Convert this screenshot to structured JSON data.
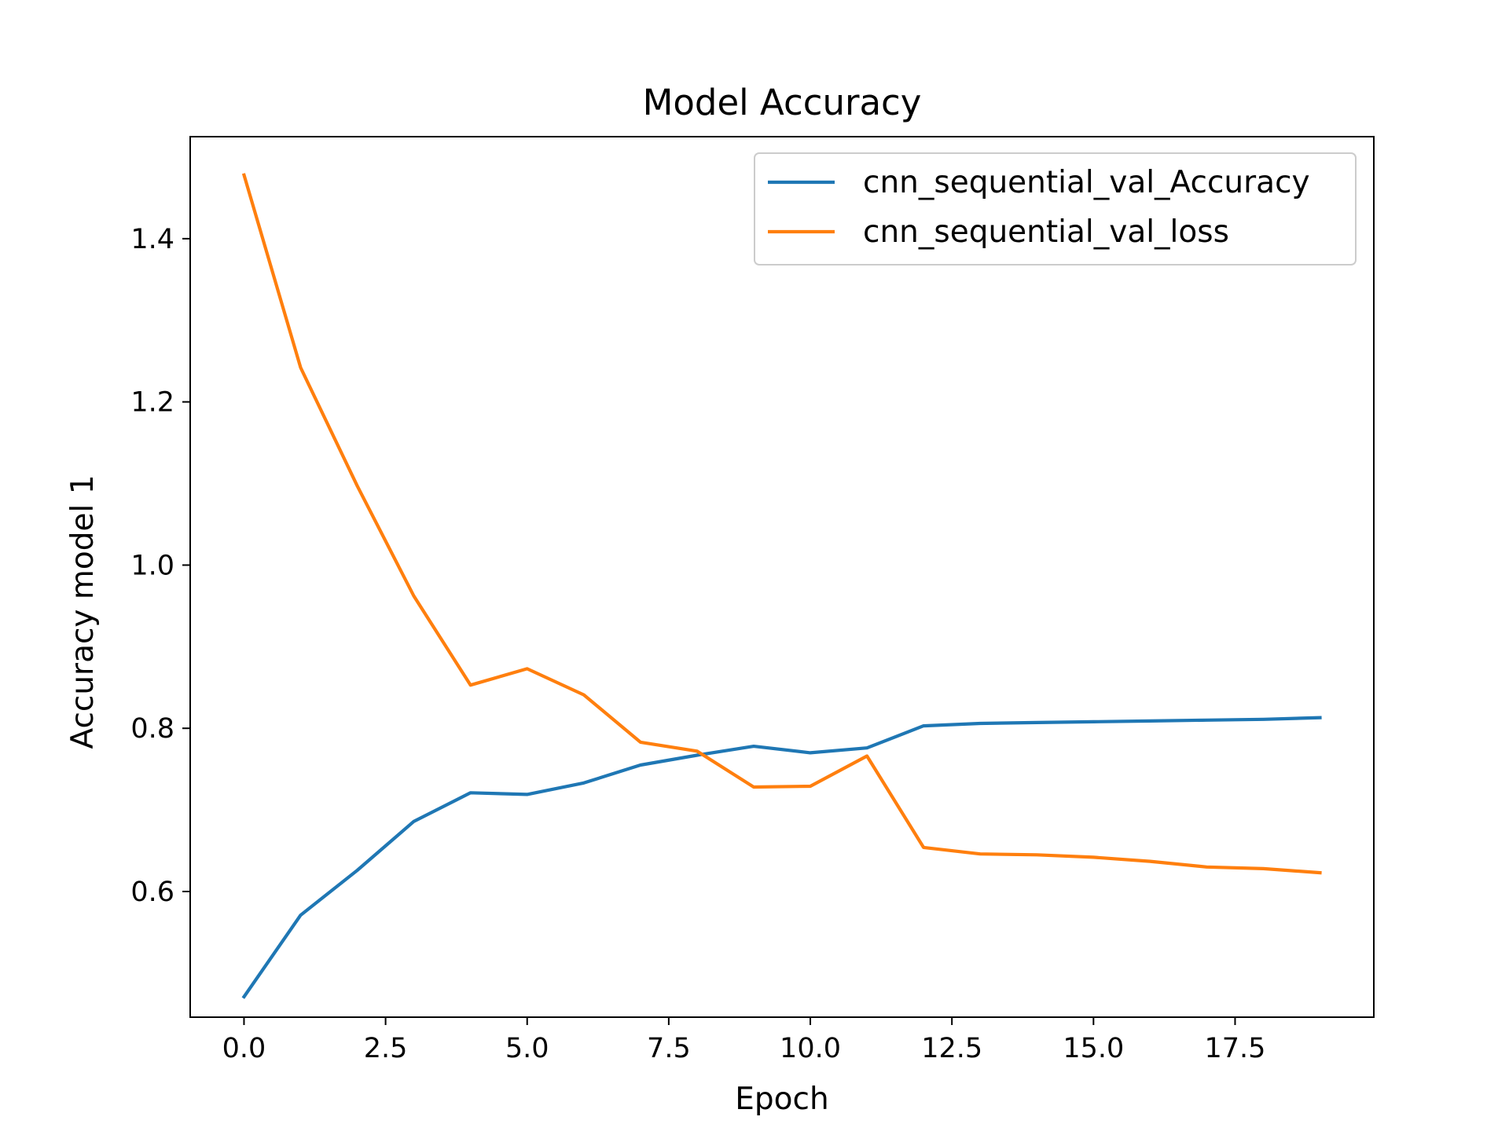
{
  "chart_data": {
    "type": "line",
    "title": "Model Accuracy",
    "xlabel": "Epoch",
    "ylabel": "Accuracy model 1",
    "xlim": [
      -0.95,
      19.95
    ],
    "ylim": [
      0.446,
      1.525
    ],
    "xticks": [
      0.0,
      2.5,
      5.0,
      7.5,
      10.0,
      12.5,
      15.0,
      17.5
    ],
    "xtick_labels": [
      "0.0",
      "2.5",
      "5.0",
      "7.5",
      "10.0",
      "12.5",
      "15.0",
      "17.5"
    ],
    "yticks": [
      0.6,
      0.8,
      1.0,
      1.2,
      1.4
    ],
    "ytick_labels": [
      "0.6",
      "0.8",
      "1.0",
      "1.2",
      "1.4"
    ],
    "grid": false,
    "legend_position": "top-right",
    "x": [
      0,
      1,
      2,
      3,
      4,
      5,
      6,
      7,
      8,
      9,
      10,
      11,
      12,
      13,
      14,
      15,
      16,
      17,
      18,
      19
    ],
    "series": [
      {
        "name": "cnn_sequential_val_Accuracy",
        "color": "#1f77b4",
        "values": [
          0.471,
          0.571,
          0.626,
          0.686,
          0.721,
          0.719,
          0.733,
          0.755,
          0.767,
          0.778,
          0.77,
          0.776,
          0.803,
          0.806,
          0.807,
          0.808,
          0.809,
          0.81,
          0.811,
          0.813
        ]
      },
      {
        "name": "cnn_sequential_val_loss",
        "color": "#ff7f0e",
        "values": [
          1.478,
          1.242,
          1.097,
          0.962,
          0.853,
          0.873,
          0.841,
          0.783,
          0.772,
          0.728,
          0.729,
          0.766,
          0.654,
          0.646,
          0.645,
          0.642,
          0.637,
          0.63,
          0.628,
          0.623
        ]
      }
    ]
  }
}
